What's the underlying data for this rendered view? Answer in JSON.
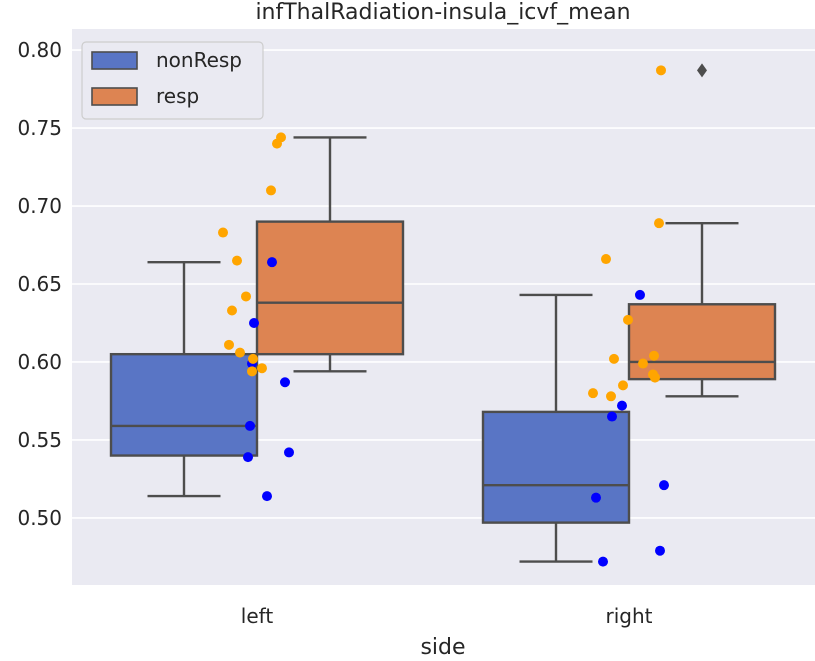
{
  "chart_data": {
    "type": "box",
    "title": "infThalRadiation-insula_icvf_mean",
    "xlabel": "side",
    "ylabel": "",
    "categories": [
      "left",
      "right"
    ],
    "ylim": [
      0.457,
      0.8135
    ],
    "yticks": [
      "0.50",
      "0.55",
      "0.60",
      "0.65",
      "0.70",
      "0.75",
      "0.80"
    ],
    "grid": true,
    "legend": {
      "placement": "top-left",
      "entries": [
        "nonResp",
        "resp"
      ]
    },
    "colors": {
      "background": "#eaeaf2",
      "grid": "#ffffff",
      "nonResp_box": "#5975c5",
      "resp_box": "#dd8452",
      "box_edge": "#4d4d4d",
      "nonResp_points": "#0000ff",
      "resp_points": "#ffa500"
    },
    "series": [
      {
        "name": "nonResp",
        "boxes": [
          {
            "category": "left",
            "whislo": 0.514,
            "q1": 0.54,
            "median": 0.559,
            "q3": 0.605,
            "whishi": 0.664,
            "fliers": []
          },
          {
            "category": "right",
            "whislo": 0.472,
            "q1": 0.497,
            "median": 0.521,
            "q3": 0.568,
            "whishi": 0.643,
            "fliers": []
          }
        ],
        "points": [
          {
            "category": "left",
            "values": [
              0.664,
              0.625,
              0.599,
              0.587,
              0.559,
              0.542,
              0.539,
              0.514
            ]
          },
          {
            "category": "right",
            "values": [
              0.643,
              0.572,
              0.565,
              0.521,
              0.513,
              0.479,
              0.472
            ]
          }
        ]
      },
      {
        "name": "resp",
        "boxes": [
          {
            "category": "left",
            "whislo": 0.594,
            "q1": 0.605,
            "median": 0.638,
            "q3": 0.69,
            "whishi": 0.744,
            "fliers": []
          },
          {
            "category": "right",
            "whislo": 0.578,
            "q1": 0.589,
            "median": 0.6,
            "q3": 0.637,
            "whishi": 0.689,
            "fliers": [
              0.787
            ]
          }
        ],
        "points": [
          {
            "category": "left",
            "values": [
              0.744,
              0.74,
              0.71,
              0.683,
              0.665,
              0.642,
              0.633,
              0.611,
              0.606,
              0.602,
              0.596,
              0.594
            ]
          },
          {
            "category": "right",
            "values": [
              0.787,
              0.689,
              0.666,
              0.627,
              0.604,
              0.602,
              0.599,
              0.592,
              0.59,
              0.585,
              0.58,
              0.578
            ]
          }
        ]
      }
    ]
  }
}
